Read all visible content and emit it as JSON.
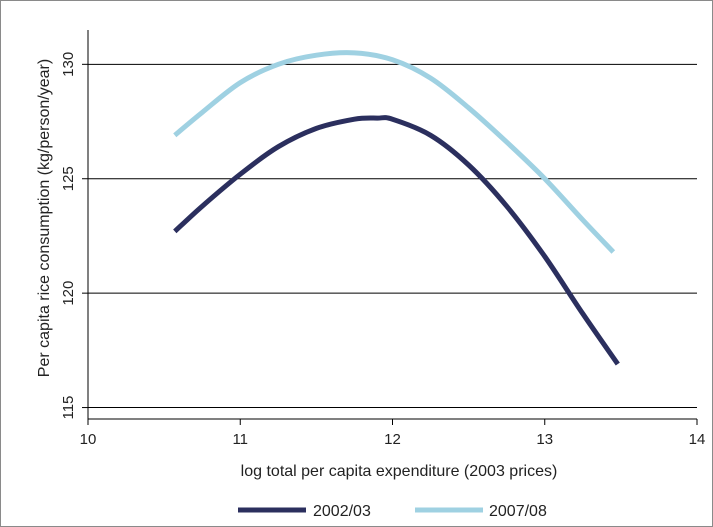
{
  "chart_data": {
    "type": "line",
    "title": "",
    "xlabel": "log total per capita expenditure (2003 prices)",
    "ylabel": "Per capita rice consumption (kg/person/year)",
    "xlim": [
      10,
      14
    ],
    "ylim": [
      114.5,
      131.5
    ],
    "x_ticks": [
      10,
      11,
      12,
      13,
      14
    ],
    "y_ticks": [
      115,
      120,
      125,
      130
    ],
    "grid": "horizontal",
    "legend_position": "bottom",
    "series": [
      {
        "name": "2002/03",
        "color": "#2b2f5e",
        "x": [
          10.57,
          10.75,
          11.0,
          11.25,
          11.5,
          11.75,
          11.9,
          12.0,
          12.25,
          12.5,
          12.75,
          13.0,
          13.25,
          13.48
        ],
        "y": [
          122.7,
          123.8,
          125.2,
          126.4,
          127.2,
          127.6,
          127.65,
          127.6,
          126.9,
          125.6,
          123.8,
          121.6,
          119.1,
          116.9
        ]
      },
      {
        "name": "2007/08",
        "color": "#9fd1e2",
        "x": [
          10.57,
          10.75,
          11.0,
          11.25,
          11.5,
          11.75,
          12.0,
          12.25,
          12.5,
          12.75,
          13.0,
          13.25,
          13.45
        ],
        "y": [
          126.9,
          127.9,
          129.2,
          130.0,
          130.4,
          130.5,
          130.2,
          129.4,
          128.1,
          126.6,
          125.0,
          123.2,
          121.8
        ]
      }
    ]
  }
}
